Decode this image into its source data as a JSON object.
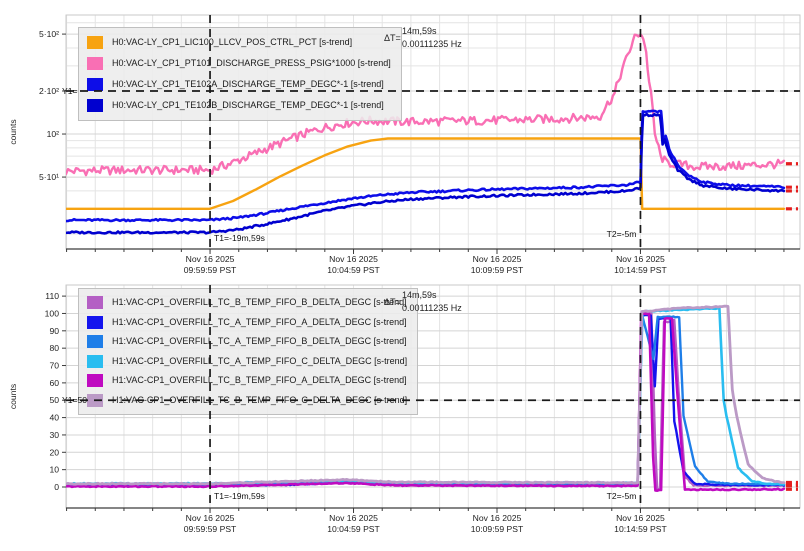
{
  "app": {
    "title": "Strip-tool dual trend plot",
    "background": "#ffffff"
  },
  "colors": {
    "grid_minor": "#e4e4e4",
    "grid_major": "#d4d4d4",
    "frame": "#c9c9c9",
    "axis": "#3c3c3c",
    "cursor": "#1a1a1a",
    "live_dash": "#e41e1e",
    "legend_bg": "#ececec"
  },
  "chart_data": [
    {
      "type": "line",
      "ylabel": "counts",
      "yscale": "log",
      "y_range": [
        15.7,
        680
      ],
      "x_range": [
        -5.02,
        20.56
      ],
      "x_minor_step": 1,
      "y_ticks": [
        {
          "v": 500,
          "label": "5·10²"
        },
        {
          "v": 200,
          "label": "2·10²"
        },
        {
          "v": 100,
          "label": "10²"
        },
        {
          "v": 50,
          "label": "5·10¹"
        }
      ],
      "y_minor": [
        600,
        400,
        300,
        90,
        80,
        70,
        60,
        40,
        30,
        20
      ],
      "x_ticks": [
        {
          "t": 0,
          "label": [
            "Nov 16 2025",
            "09:59:59 PST"
          ]
        },
        {
          "t": 5,
          "label": [
            "Nov 16 2025",
            "10:04:59 PST"
          ]
        },
        {
          "t": 10,
          "label": [
            "Nov 16 2025",
            "10:09:59 PST"
          ]
        },
        {
          "t": 15,
          "label": [
            "Nov 16 2025",
            "10:14:59 PST"
          ]
        }
      ],
      "annotation": {
        "prefix": "ΔT=",
        "line1": "14m,59s",
        "line2": "0.00111235 Hz"
      },
      "cursors": {
        "t1": {
          "t": 0,
          "label": "T1=-19m,59s"
        },
        "t2": {
          "t": 15,
          "label": "T2=-5m"
        },
        "y1": {
          "v": 200,
          "label": "Y1="
        }
      },
      "live_edge_t": 20.0,
      "series": [
        {
          "name": "H0:VAC-LY_CP1_LIC100_LLCV_POS_CTRL_PCT [s-trend]",
          "color": "#f7a311",
          "w": 2.4,
          "noise": 0,
          "points": [
            [
              -5.02,
              30
            ],
            [
              0,
              30
            ],
            [
              0.8,
              34
            ],
            [
              1.6,
              41
            ],
            [
              2.4,
              50
            ],
            [
              3.2,
              60
            ],
            [
              4,
              71
            ],
            [
              4.8,
              82
            ],
            [
              5.6,
              90
            ],
            [
              6.2,
              93
            ],
            [
              15,
              93
            ],
            [
              15.06,
              30
            ],
            [
              20,
              30
            ]
          ]
        },
        {
          "name": "H0:VAC-LY_CP1_PT101_DISCHARGE_PRESS_PSIG*1000 [s-trend]",
          "color": "#f96fb4",
          "w": 2.4,
          "noise": 0.07,
          "points": [
            [
              -5.02,
              55
            ],
            [
              -3,
              56
            ],
            [
              0,
              56
            ],
            [
              0.7,
              62
            ],
            [
              1.5,
              72
            ],
            [
              2.3,
              84
            ],
            [
              3.1,
              97
            ],
            [
              3.9,
              110
            ],
            [
              4.7,
              119
            ],
            [
              5.5,
              124
            ],
            [
              7,
              122
            ],
            [
              9,
              124
            ],
            [
              11,
              126
            ],
            [
              13,
              130
            ],
            [
              13.6,
              134
            ],
            [
              14.1,
              190
            ],
            [
              14.5,
              330
            ],
            [
              14.8,
              470
            ],
            [
              15.0,
              515
            ],
            [
              15.15,
              430
            ],
            [
              15.3,
              230
            ],
            [
              15.5,
              100
            ],
            [
              15.7,
              70
            ],
            [
              15.9,
              63
            ],
            [
              17,
              59
            ],
            [
              18.5,
              60
            ],
            [
              20,
              62
            ]
          ]
        },
        {
          "name": "H0:VAC-LY_CP1_TE102A_DISCHARGE_TEMP_DEGC*-1 [s-trend]",
          "color": "#0d0de8",
          "w": 2.6,
          "noise": 0.016,
          "points": [
            [
              -5.02,
              25
            ],
            [
              0,
              25
            ],
            [
              1,
              26
            ],
            [
              2,
              28
            ],
            [
              3,
              30.5
            ],
            [
              4,
              33
            ],
            [
              5,
              35.5
            ],
            [
              6,
              37.5
            ],
            [
              7,
              39
            ],
            [
              9,
              40.5
            ],
            [
              11,
              41.5
            ],
            [
              13,
              42.5
            ],
            [
              14.5,
              44
            ],
            [
              15.0,
              46
            ],
            [
              15.08,
              143
            ],
            [
              15.72,
              143
            ],
            [
              15.8,
              90
            ],
            [
              15.88,
              97
            ],
            [
              16.0,
              78
            ],
            [
              16.3,
              60
            ],
            [
              16.7,
              51
            ],
            [
              17.2,
              46
            ],
            [
              18,
              44
            ],
            [
              20,
              42.5
            ]
          ]
        },
        {
          "name": "H0:VAC-LY_CP1_TE102B_DISCHARGE_TEMP_DEGC*-1 [s-trend]",
          "color": "#0000cf",
          "w": 2.6,
          "noise": 0.016,
          "points": [
            [
              -5.02,
              20.5
            ],
            [
              0,
              20.5
            ],
            [
              1,
              21.5
            ],
            [
              2,
              23.5
            ],
            [
              3,
              26
            ],
            [
              4,
              29
            ],
            [
              5,
              31.5
            ],
            [
              6,
              33.5
            ],
            [
              7,
              35
            ],
            [
              9,
              36.5
            ],
            [
              11,
              37.5
            ],
            [
              13,
              38.5
            ],
            [
              14.5,
              40
            ],
            [
              15.0,
              42
            ],
            [
              15.09,
              136
            ],
            [
              15.68,
              136
            ],
            [
              15.77,
              85
            ],
            [
              15.85,
              91
            ],
            [
              16.0,
              71
            ],
            [
              16.3,
              56
            ],
            [
              16.7,
              48
            ],
            [
              17.2,
              43.5
            ],
            [
              18,
              41.5
            ],
            [
              20,
              40
            ]
          ]
        }
      ]
    },
    {
      "type": "line",
      "ylabel": "counts",
      "yscale": "linear",
      "y_range": [
        -12.1,
        116.4
      ],
      "x_range": [
        -5.02,
        20.56
      ],
      "x_minor_step": 1,
      "y_ticks": [
        {
          "v": 110,
          "label": "110"
        },
        {
          "v": 100,
          "label": "100"
        },
        {
          "v": 90,
          "label": "90"
        },
        {
          "v": 80,
          "label": "80"
        },
        {
          "v": 70,
          "label": "70"
        },
        {
          "v": 60,
          "label": "60"
        },
        {
          "v": 50,
          "label": "50"
        },
        {
          "v": 40,
          "label": "40"
        },
        {
          "v": 30,
          "label": "30"
        },
        {
          "v": 20,
          "label": "20"
        },
        {
          "v": 10,
          "label": "10"
        },
        {
          "v": 0,
          "label": "0"
        }
      ],
      "y_minor": [],
      "x_ticks": [
        {
          "t": 0,
          "label": [
            "Nov 16 2025",
            "09:59:59 PST"
          ]
        },
        {
          "t": 5,
          "label": [
            "Nov 16 2025",
            "10:04:59 PST"
          ]
        },
        {
          "t": 10,
          "label": [
            "Nov 16 2025",
            "10:09:59 PST"
          ]
        },
        {
          "t": 15,
          "label": [
            "Nov 16 2025",
            "10:14:59 PST"
          ]
        }
      ],
      "annotation": {
        "prefix": "ΔT=",
        "line1": "14m,59s",
        "line2": "0.00111235 Hz"
      },
      "cursors": {
        "t1": {
          "t": 0,
          "label": "T1=-19m,59s"
        },
        "t2": {
          "t": 15,
          "label": "T2=-5m"
        },
        "y1": {
          "v": 50,
          "label": "Y1=50"
        }
      },
      "live_edge_t": 20.0,
      "series": [
        {
          "name": "H1:VAC-CP1_OVERFILL_TC_B_TEMP_FIFO_B_DELTA_DEGC [s-trend]",
          "color": "#b45fc4",
          "w": 2.4,
          "noise": 0.35,
          "points": [
            [
              -5.02,
              1.2
            ],
            [
              0,
              1.2
            ],
            [
              3,
              1.6
            ],
            [
              4.7,
              3.4
            ],
            [
              6.5,
              2
            ],
            [
              9,
              1.6
            ],
            [
              14.9,
              1.6
            ],
            [
              15.03,
              100
            ],
            [
              15.38,
              100
            ],
            [
              15.5,
              30
            ],
            [
              15.58,
              -1
            ],
            [
              15.68,
              -1
            ],
            [
              15.82,
              95
            ],
            [
              16.18,
              96
            ],
            [
              16.33,
              55
            ],
            [
              16.55,
              6
            ],
            [
              16.85,
              1
            ],
            [
              18,
              0.8
            ],
            [
              20,
              0.8
            ]
          ]
        },
        {
          "name": "H1:VAC-CP1_OVERFILL_TC_A_TEMP_FIFO_A_DELTA_DEGC [s-trend]",
          "color": "#1414ee",
          "w": 2.4,
          "noise": 0.3,
          "points": [
            [
              -5.02,
              1
            ],
            [
              0,
              1
            ],
            [
              3,
              1.3
            ],
            [
              4.7,
              2.7
            ],
            [
              6.5,
              1.7
            ],
            [
              14.9,
              1.4
            ],
            [
              15.04,
              99
            ],
            [
              15.36,
              99
            ],
            [
              15.5,
              58
            ],
            [
              15.63,
              97
            ],
            [
              16.05,
              97
            ],
            [
              16.18,
              38
            ],
            [
              16.5,
              9
            ],
            [
              16.9,
              1.8
            ],
            [
              18,
              1.2
            ],
            [
              20,
              1
            ]
          ]
        },
        {
          "name": "H1:VAC-CP1_OVERFILL_TC_A_TEMP_FIFO_B_DELTA_DEGC [s-trend]",
          "color": "#1e7ee8",
          "w": 2.4,
          "noise": 0.3,
          "points": [
            [
              -5.02,
              1.5
            ],
            [
              0,
              1.5
            ],
            [
              4.7,
              3.1
            ],
            [
              6.5,
              2.1
            ],
            [
              14.9,
              1.9
            ],
            [
              15.06,
              99
            ],
            [
              15.45,
              74
            ],
            [
              15.6,
              98
            ],
            [
              16.35,
              98
            ],
            [
              16.5,
              41
            ],
            [
              16.9,
              12
            ],
            [
              17.35,
              3
            ],
            [
              18,
              1.9
            ],
            [
              20,
              1.6
            ]
          ]
        },
        {
          "name": "H1:VAC-CP1_OVERFILL_TC_A_TEMP_FIFO_C_DELTA_DEGC [s-trend]",
          "color": "#29bdf0",
          "w": 2.6,
          "noise": 0.3,
          "points": [
            [
              -5.02,
              2
            ],
            [
              0,
              2
            ],
            [
              4.7,
              3.7
            ],
            [
              6.5,
              2.5
            ],
            [
              14.9,
              2.3
            ],
            [
              15.07,
              101
            ],
            [
              16.3,
              102
            ],
            [
              17.75,
              103
            ],
            [
              17.9,
              50
            ],
            [
              18.0,
              41
            ],
            [
              18.4,
              11
            ],
            [
              18.9,
              3.2
            ],
            [
              19.4,
              1.9
            ],
            [
              20,
              1.7
            ]
          ]
        },
        {
          "name": "H1:VAC-CP1_OVERFILL_TC_B_TEMP_FIFO_A_DELTA_DEGC [s-trend]",
          "color": "#bf0ac0",
          "w": 2.6,
          "noise": 0.3,
          "points": [
            [
              -5.02,
              0.3
            ],
            [
              0,
              0.3
            ],
            [
              4.7,
              2.3
            ],
            [
              6.5,
              0.9
            ],
            [
              14.9,
              0.6
            ],
            [
              15.03,
              100
            ],
            [
              15.3,
              100
            ],
            [
              15.44,
              18
            ],
            [
              15.52,
              -2
            ],
            [
              15.72,
              -2
            ],
            [
              15.85,
              97
            ],
            [
              16.1,
              97
            ],
            [
              16.28,
              55
            ],
            [
              16.55,
              -1.5
            ],
            [
              18,
              -1.5
            ],
            [
              20,
              -1.3
            ]
          ]
        },
        {
          "name": "H1:VAC-CP1_OVERFILL_TC_B_TEMP_FIFO_C_DELTA_DEGC [s-trend]",
          "color": "#bb9ac6",
          "w": 2.8,
          "noise": 0.3,
          "points": [
            [
              -5.02,
              1.9
            ],
            [
              0,
              1.9
            ],
            [
              4.7,
              4.2
            ],
            [
              6.5,
              2.8
            ],
            [
              14.9,
              2.5
            ],
            [
              15.05,
              101
            ],
            [
              16.3,
              103
            ],
            [
              18.05,
              104
            ],
            [
              18.2,
              56
            ],
            [
              18.35,
              41
            ],
            [
              18.75,
              13
            ],
            [
              19.25,
              5
            ],
            [
              19.75,
              3
            ],
            [
              20,
              2.6
            ]
          ]
        }
      ]
    }
  ]
}
